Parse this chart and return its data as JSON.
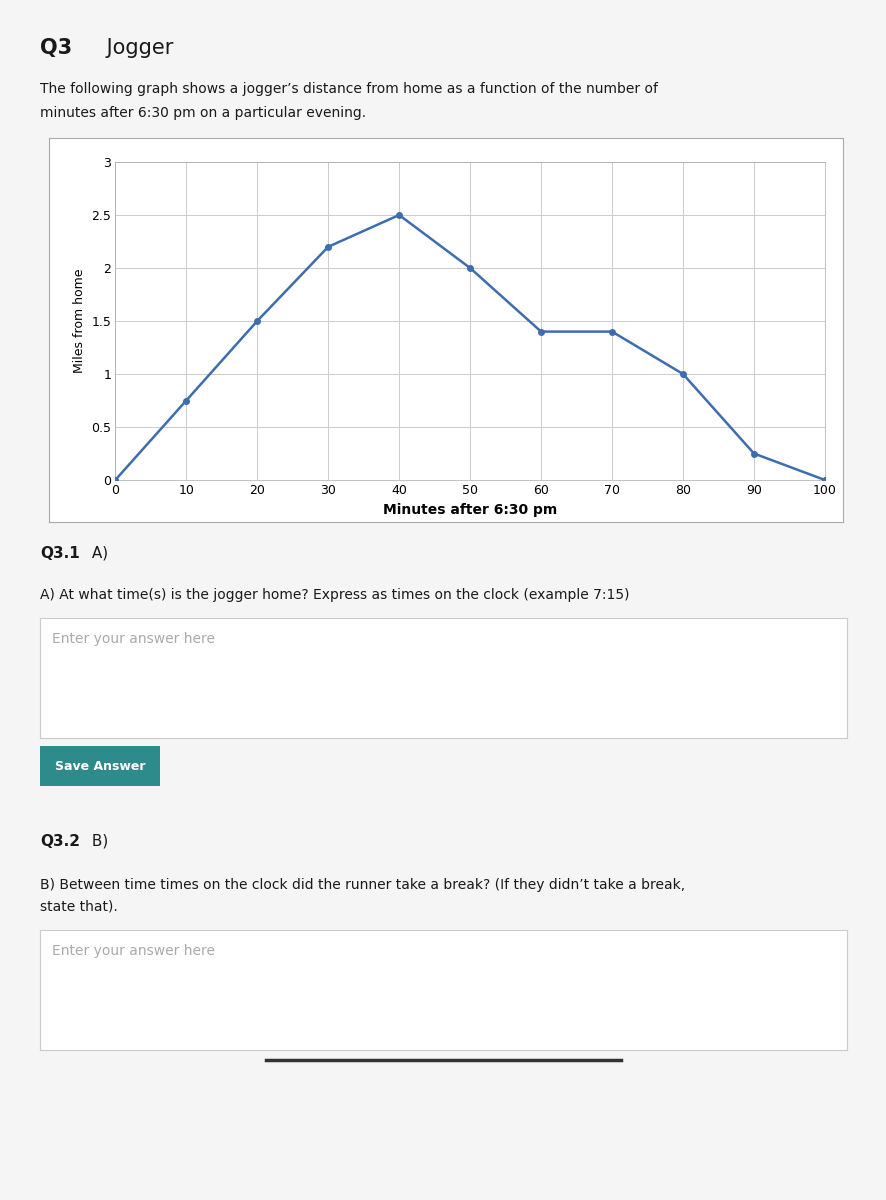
{
  "x": [
    0,
    10,
    20,
    30,
    40,
    50,
    60,
    70,
    80,
    90,
    100
  ],
  "y": [
    0,
    0.75,
    1.5,
    2.2,
    2.5,
    2.0,
    1.4,
    1.4,
    1.0,
    0.25,
    0
  ],
  "line_color": "#3C6EAF",
  "marker_color": "#3C6EAF",
  "xlabel": "Minutes after 6:30 pm",
  "ylabel": "Miles from home",
  "xlim": [
    0,
    100
  ],
  "ylim": [
    0,
    3
  ],
  "xticks": [
    0,
    10,
    20,
    30,
    40,
    50,
    60,
    70,
    80,
    90,
    100
  ],
  "yticks": [
    0,
    0.5,
    1,
    1.5,
    2,
    2.5,
    3
  ],
  "grid_color": "#CCCCCC",
  "chart_bg": "#FFFFFF",
  "page_bg": "#EBEBEB",
  "content_bg": "#F5F5F5",
  "title_bold": "Q3",
  "title_normal": " Jogger",
  "description_line1": "The following graph shows a jogger’s distance from home as a function of the number of",
  "description_line2": "minutes after 6:30 pm on a particular evening.",
  "q31_bold": "Q3.1",
  "q31_normal": " A)",
  "q31_question": "A) At what time(s) is the jogger home? Express as times on the clock (example 7:15)",
  "q31_placeholder": "Enter your answer here",
  "save_button": "Save Answer",
  "q32_bold": "Q3.2",
  "q32_normal": " B)",
  "q32_question_line1": "B) Between time times on the clock did the runner take a break? (If they didn’t take a break,",
  "q32_question_line2": "state that).",
  "q32_placeholder": "Enter your answer here",
  "chart_border_color": "#AAAAAA",
  "box_border_color": "#CCCCCC",
  "btn_color": "#2E8B8B",
  "text_color": "#1a1a1a",
  "placeholder_color": "#AAAAAA"
}
